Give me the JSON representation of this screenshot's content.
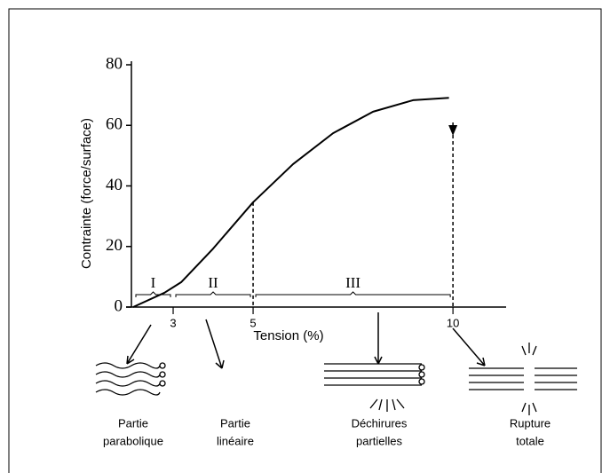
{
  "chart_data": {
    "type": "line",
    "x_label": "Tension (%)",
    "y_label": "Contrainte (force/surface)",
    "x": [
      2,
      2.78,
      3.2,
      4,
      5,
      6,
      7,
      8,
      9,
      9.9
    ],
    "series": [
      {
        "color": "#000000",
        "values": [
          0,
          4.7,
          8.2,
          19.3,
          34.6,
          47.2,
          57.4,
          64.5,
          68.3,
          69.1
        ]
      }
    ],
    "xlim": [
      2,
      11.33
    ],
    "xticks": [
      3,
      5,
      10
    ],
    "ylim": [
      0,
      80
    ],
    "yticks": [
      0,
      20,
      40,
      60,
      80
    ],
    "dashed_x": [
      5,
      10
    ],
    "region_labels": [
      "I",
      "II",
      "III"
    ],
    "captions": [
      [
        "Partie",
        "parabolique"
      ],
      [
        "Partie",
        "linéaire"
      ],
      [
        "Déchirures",
        "partielles"
      ],
      [
        "Rupture",
        "totale"
      ]
    ]
  }
}
